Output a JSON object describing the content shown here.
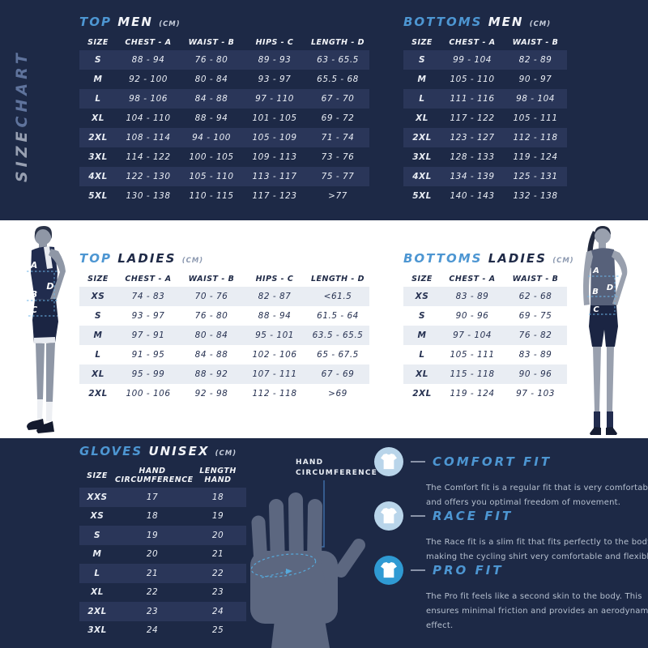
{
  "sidebar": {
    "size": "SIZE",
    "chart": "CHART"
  },
  "tables": {
    "top_men": {
      "accent": "TOP",
      "main": "MEN",
      "unit": "(CM)",
      "headers": [
        "SIZE",
        "CHEST - A",
        "WAIST - B",
        "HIPS - C",
        "LENGTH - D"
      ],
      "rows": [
        [
          "S",
          "88 - 94",
          "76 - 80",
          "89 - 93",
          "63 - 65.5"
        ],
        [
          "M",
          "92 - 100",
          "80 - 84",
          "93 - 97",
          "65.5 - 68"
        ],
        [
          "L",
          "98 - 106",
          "84 - 88",
          "97 - 110",
          "67 - 70"
        ],
        [
          "XL",
          "104 - 110",
          "88 - 94",
          "101 - 105",
          "69 - 72"
        ],
        [
          "2XL",
          "108 - 114",
          "94 - 100",
          "105 - 109",
          "71 - 74"
        ],
        [
          "3XL",
          "114 - 122",
          "100 - 105",
          "109 - 113",
          "73 - 76"
        ],
        [
          "4XL",
          "122 - 130",
          "105 - 110",
          "113 - 117",
          "75 - 77"
        ],
        [
          "5XL",
          "130 - 138",
          "110 - 115",
          "117 - 123",
          ">77"
        ]
      ]
    },
    "bottoms_men": {
      "accent": "BOTTOMS",
      "main": "MEN",
      "unit": "(CM)",
      "headers": [
        "SIZE",
        "CHEST - A",
        "WAIST - B"
      ],
      "rows": [
        [
          "S",
          "99 - 104",
          "82 - 89"
        ],
        [
          "M",
          "105 - 110",
          "90 - 97"
        ],
        [
          "L",
          "111 - 116",
          "98 - 104"
        ],
        [
          "XL",
          "117 - 122",
          "105 - 111"
        ],
        [
          "2XL",
          "123 - 127",
          "112 - 118"
        ],
        [
          "3XL",
          "128 - 133",
          "119 - 124"
        ],
        [
          "4XL",
          "134 - 139",
          "125 - 131"
        ],
        [
          "5XL",
          "140 - 143",
          "132 - 138"
        ]
      ]
    },
    "top_ladies": {
      "accent": "TOP",
      "main": "LADIES",
      "unit": "(CM)",
      "headers": [
        "SIZE",
        "CHEST - A",
        "WAIST - B",
        "HIPS - C",
        "LENGTH - D"
      ],
      "rows": [
        [
          "XS",
          "74 - 83",
          "70 - 76",
          "82 - 87",
          "<61.5"
        ],
        [
          "S",
          "93 - 97",
          "76 - 80",
          "88 - 94",
          "61.5 - 64"
        ],
        [
          "M",
          "97 - 91",
          "80 - 84",
          "95 - 101",
          "63.5 - 65.5"
        ],
        [
          "L",
          "91 - 95",
          "84 - 88",
          "102 - 106",
          "65 - 67.5"
        ],
        [
          "XL",
          "95 - 99",
          "88 - 92",
          "107 - 111",
          "67 - 69"
        ],
        [
          "2XL",
          "100 - 106",
          "92 - 98",
          "112 - 118",
          ">69"
        ]
      ]
    },
    "bottoms_ladies": {
      "accent": "BOTTOMS",
      "main": "LADIES",
      "unit": "(CM)",
      "headers": [
        "SIZE",
        "CHEST - A",
        "WAIST - B"
      ],
      "rows": [
        [
          "XS",
          "83 - 89",
          "62 - 68"
        ],
        [
          "S",
          "90 - 96",
          "69 - 75"
        ],
        [
          "M",
          "97 - 104",
          "76 - 82"
        ],
        [
          "L",
          "105 - 111",
          "83 - 89"
        ],
        [
          "XL",
          "115 - 118",
          "90 - 96"
        ],
        [
          "2XL",
          "119 - 124",
          "97 - 103"
        ]
      ]
    },
    "gloves": {
      "accent": "GLOVES",
      "main": "UNISEX",
      "unit": "(CM)",
      "headers": [
        "SIZE",
        "HAND\nCIRCUMFERENCE",
        "LENGTH\nHAND"
      ],
      "rows": [
        [
          "XXS",
          "17",
          "18"
        ],
        [
          "XS",
          "18",
          "19"
        ],
        [
          "S",
          "19",
          "20"
        ],
        [
          "M",
          "20",
          "21"
        ],
        [
          "L",
          "21",
          "22"
        ],
        [
          "XL",
          "22",
          "23"
        ],
        [
          "2XL",
          "23",
          "24"
        ],
        [
          "3XL",
          "24",
          "25"
        ]
      ]
    }
  },
  "hand_diagram": {
    "label_line1": "HAND",
    "label_line2": "CIRCUMFERENCE"
  },
  "fits": [
    {
      "name": "COMFORT FIT",
      "icon": "tshirt-icon",
      "circle_color": "#b9d5ea",
      "description": "The Comfort fit is a regular fit that is very comfortable and offers you optimal freedom of movement."
    },
    {
      "name": "RACE FIT",
      "icon": "tshirt-icon",
      "circle_color": "#b9d5ea",
      "description": "The Race fit is a slim fit that fits perfectly to the body, making the cycling shirt very comfortable and flexible."
    },
    {
      "name": "PRO FIT",
      "icon": "tshirt-icon",
      "circle_color": "#2f9ad3",
      "description": "The Pro fit feels like a second skin to the body. This ensures minimal friction and provides an aerodynamic effect."
    }
  ],
  "models": {
    "male": {
      "letters": [
        "A",
        "D",
        "B",
        "C"
      ]
    },
    "female": {
      "letters": [
        "A",
        "B",
        "D",
        "C"
      ]
    }
  },
  "colors": {
    "background_navy": "#1d2946",
    "row_highlight_navy": "#2a3659",
    "light_band": "#ffffff",
    "row_highlight_light": "#e9edf3",
    "accent_blue": "#4d96d2",
    "text_light": "#eef1f6",
    "fit_description_gray": "#b6c0cf",
    "pale_circle_blue": "#b9d5ea",
    "pro_circle_blue": "#2f9ad3",
    "dashed_measure_blue": "#6fb6e8"
  }
}
